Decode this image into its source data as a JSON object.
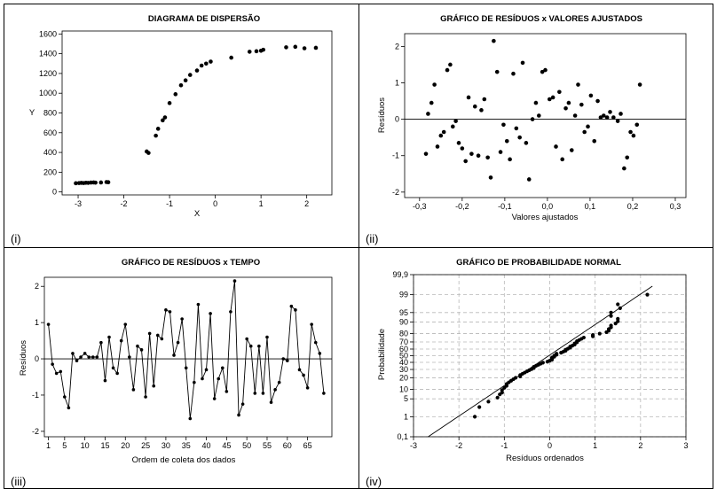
{
  "chart_data": [
    {
      "id": "scatter",
      "type": "scatter",
      "panel_label": "(i)",
      "title": "DIAGRAMA DE DISPERSÃO",
      "xlabel": "X",
      "ylabel": "Y",
      "xlim": [
        -3.35,
        2.55
      ],
      "ylim": [
        -30,
        1630
      ],
      "xticks": [
        -3,
        -2,
        -1,
        0,
        1,
        2
      ],
      "yticks": [
        0,
        200,
        400,
        600,
        800,
        1000,
        1200,
        1400,
        1600
      ],
      "points": [
        [
          -3.05,
          88
        ],
        [
          -2.98,
          90
        ],
        [
          -2.93,
          92
        ],
        [
          -2.88,
          90
        ],
        [
          -2.83,
          93
        ],
        [
          -2.78,
          92
        ],
        [
          -2.72,
          95
        ],
        [
          -2.66,
          96
        ],
        [
          -2.62,
          94
        ],
        [
          -2.5,
          96
        ],
        [
          -2.38,
          100
        ],
        [
          -2.34,
          98
        ],
        [
          -1.5,
          410
        ],
        [
          -1.46,
          395
        ],
        [
          -1.3,
          570
        ],
        [
          -1.25,
          640
        ],
        [
          -1.15,
          725
        ],
        [
          -1.1,
          755
        ],
        [
          -1.0,
          900
        ],
        [
          -0.87,
          990
        ],
        [
          -0.75,
          1080
        ],
        [
          -0.65,
          1130
        ],
        [
          -0.55,
          1185
        ],
        [
          -0.4,
          1230
        ],
        [
          -0.3,
          1280
        ],
        [
          -0.2,
          1300
        ],
        [
          -0.1,
          1320
        ],
        [
          0.35,
          1360
        ],
        [
          0.75,
          1420
        ],
        [
          0.9,
          1425
        ],
        [
          1.0,
          1430
        ],
        [
          1.05,
          1440
        ],
        [
          1.55,
          1465
        ],
        [
          1.75,
          1470
        ],
        [
          1.95,
          1455
        ],
        [
          2.2,
          1460
        ]
      ]
    },
    {
      "id": "residuals_vs_fitted",
      "type": "scatter",
      "panel_label": "(ii)",
      "title": "GRÁFICO DE RESÍDUOS x VALORES AJUSTADOS",
      "xlabel": "Valores ajustados",
      "ylabel": "Resíduos",
      "xlim": [
        -0.335,
        0.325
      ],
      "ylim": [
        -2.15,
        2.35
      ],
      "xticks": [
        -0.3,
        -0.2,
        -0.1,
        0.0,
        0.1,
        0.2,
        0.3
      ],
      "xtick_labels": [
        "-0,3",
        "-0,2",
        "-0,1",
        "0,0",
        "0,1",
        "0,2",
        "0,3"
      ],
      "yticks": [
        -2,
        -1,
        0,
        1,
        2
      ],
      "reference_line": 0,
      "points": [
        [
          -0.285,
          -0.95
        ],
        [
          -0.28,
          0.15
        ],
        [
          -0.272,
          0.45
        ],
        [
          -0.265,
          0.95
        ],
        [
          -0.258,
          -0.75
        ],
        [
          -0.25,
          -0.45
        ],
        [
          -0.243,
          -0.35
        ],
        [
          -0.235,
          1.35
        ],
        [
          -0.228,
          1.5
        ],
        [
          -0.222,
          -0.2
        ],
        [
          -0.215,
          -0.05
        ],
        [
          -0.208,
          -0.65
        ],
        [
          -0.2,
          -0.8
        ],
        [
          -0.192,
          -1.15
        ],
        [
          -0.185,
          0.6
        ],
        [
          -0.178,
          -0.95
        ],
        [
          -0.17,
          0.35
        ],
        [
          -0.162,
          -1.0
        ],
        [
          -0.155,
          0.25
        ],
        [
          -0.148,
          0.55
        ],
        [
          -0.14,
          -1.05
        ],
        [
          -0.133,
          -1.6
        ],
        [
          -0.126,
          2.15
        ],
        [
          -0.118,
          1.3
        ],
        [
          -0.11,
          -0.9
        ],
        [
          -0.103,
          -0.15
        ],
        [
          -0.095,
          -0.6
        ],
        [
          -0.088,
          -1.1
        ],
        [
          -0.08,
          1.25
        ],
        [
          -0.073,
          -0.25
        ],
        [
          -0.065,
          -0.5
        ],
        [
          -0.058,
          1.55
        ],
        [
          -0.05,
          -0.65
        ],
        [
          -0.043,
          -1.65
        ],
        [
          -0.035,
          0.0
        ],
        [
          -0.027,
          0.45
        ],
        [
          -0.02,
          0.1
        ],
        [
          -0.012,
          1.3
        ],
        [
          -0.005,
          1.35
        ],
        [
          0.005,
          0.55
        ],
        [
          0.013,
          0.6
        ],
        [
          0.02,
          -0.75
        ],
        [
          0.028,
          0.75
        ],
        [
          0.035,
          -1.1
        ],
        [
          0.043,
          0.3
        ],
        [
          0.05,
          0.45
        ],
        [
          0.057,
          -0.85
        ],
        [
          0.065,
          0.1
        ],
        [
          0.072,
          0.95
        ],
        [
          0.08,
          0.4
        ],
        [
          0.087,
          -0.35
        ],
        [
          0.095,
          -0.2
        ],
        [
          0.102,
          0.65
        ],
        [
          0.11,
          -0.6
        ],
        [
          0.118,
          0.5
        ],
        [
          0.125,
          0.05
        ],
        [
          0.132,
          0.1
        ],
        [
          0.14,
          0.05
        ],
        [
          0.147,
          0.2
        ],
        [
          0.155,
          0.05
        ],
        [
          0.165,
          -0.05
        ],
        [
          0.172,
          0.15
        ],
        [
          0.18,
          -1.35
        ],
        [
          0.187,
          -1.05
        ],
        [
          0.195,
          -0.35
        ],
        [
          0.202,
          -0.45
        ],
        [
          0.21,
          -0.15
        ],
        [
          0.217,
          0.95
        ]
      ]
    },
    {
      "id": "residuals_vs_order",
      "type": "line",
      "panel_label": "(iii)",
      "title": "GRÁFICO DE RESÍDUOS x TEMPO",
      "xlabel": "Ordem de coleta dos dados",
      "ylabel": "Resíduos",
      "xlim": [
        0,
        71
      ],
      "ylim": [
        -2.15,
        2.25
      ],
      "xticks": [
        1,
        5,
        10,
        15,
        20,
        25,
        30,
        35,
        40,
        45,
        50,
        55,
        60,
        65
      ],
      "yticks": [
        -2,
        -1,
        0,
        1,
        2
      ],
      "reference_line": 0,
      "y": [
        0.95,
        -0.15,
        -0.4,
        -0.35,
        -1.05,
        -1.35,
        0.15,
        -0.05,
        0.05,
        0.15,
        0.05,
        0.05,
        0.05,
        0.45,
        -0.6,
        0.6,
        -0.25,
        -0.4,
        0.5,
        0.95,
        0.05,
        -0.85,
        0.35,
        0.25,
        -1.05,
        0.7,
        -0.75,
        0.65,
        0.55,
        1.35,
        1.3,
        0.1,
        0.45,
        1.1,
        -0.25,
        -1.65,
        -0.65,
        1.5,
        -0.55,
        -0.3,
        1.25,
        -1.1,
        -0.55,
        -0.25,
        -0.9,
        1.3,
        2.15,
        -1.55,
        -1.25,
        0.55,
        0.35,
        -0.95,
        0.35,
        -0.95,
        0.6,
        -1.2,
        -0.85,
        -0.65,
        0.0,
        -0.05,
        1.45,
        1.35,
        -0.3,
        -0.45,
        -0.8,
        0.95,
        0.45,
        0.15,
        -0.95
      ]
    },
    {
      "id": "normal_probability",
      "type": "scatter",
      "panel_label": "(iv)",
      "title": "GRÁFICO DE PROBABILIDADE NORMAL",
      "xlabel": "Resíduos ordenados",
      "ylabel": "Probabilidade",
      "xlim": [
        -3,
        3
      ],
      "xticks": [
        -3,
        -2,
        -1,
        0,
        1,
        2,
        3
      ],
      "yticks": [
        0.1,
        1,
        5,
        10,
        20,
        30,
        40,
        50,
        60,
        70,
        80,
        90,
        95,
        99,
        99.9
      ],
      "ytick_labels": [
        "0,1",
        "1",
        "5",
        "10",
        "20",
        "30",
        "40",
        "50",
        "60",
        "70",
        "80",
        "90",
        "95",
        "99",
        "99,9"
      ],
      "fit_line": {
        "mean": -0.02,
        "sd": 0.86
      },
      "points": [
        [
          -1.65,
          1.0
        ],
        [
          -1.55,
          2.5
        ],
        [
          -1.35,
          4.0
        ],
        [
          -1.15,
          5.5
        ],
        [
          -1.1,
          7.0
        ],
        [
          -1.05,
          8.0
        ],
        [
          -1.05,
          9.5
        ],
        [
          -1.0,
          11.0
        ],
        [
          -0.95,
          12.5
        ],
        [
          -0.95,
          14.0
        ],
        [
          -0.9,
          15.5
        ],
        [
          -0.85,
          17.0
        ],
        [
          -0.8,
          18.5
        ],
        [
          -0.75,
          20.0
        ],
        [
          -0.65,
          21.5
        ],
        [
          -0.65,
          23.0
        ],
        [
          -0.6,
          24.5
        ],
        [
          -0.55,
          26.0
        ],
        [
          -0.5,
          27.5
        ],
        [
          -0.45,
          29.0
        ],
        [
          -0.4,
          30.5
        ],
        [
          -0.35,
          32.0
        ],
        [
          -0.35,
          33.5
        ],
        [
          -0.3,
          35.0
        ],
        [
          -0.25,
          36.5
        ],
        [
          -0.2,
          38.0
        ],
        [
          -0.15,
          39.5
        ],
        [
          -0.05,
          41.0
        ],
        [
          0.0,
          42.5
        ],
        [
          0.05,
          44.0
        ],
        [
          0.05,
          45.5
        ],
        [
          0.05,
          47.0
        ],
        [
          0.1,
          48.5
        ],
        [
          0.1,
          50.0
        ],
        [
          0.15,
          51.5
        ],
        [
          0.15,
          53.0
        ],
        [
          0.25,
          54.5
        ],
        [
          0.3,
          56.0
        ],
        [
          0.35,
          57.5
        ],
        [
          0.35,
          59.0
        ],
        [
          0.4,
          60.5
        ],
        [
          0.45,
          62.0
        ],
        [
          0.45,
          63.5
        ],
        [
          0.5,
          65.0
        ],
        [
          0.55,
          66.5
        ],
        [
          0.55,
          68.0
        ],
        [
          0.6,
          69.5
        ],
        [
          0.6,
          71.0
        ],
        [
          0.65,
          72.5
        ],
        [
          0.7,
          74.0
        ],
        [
          0.75,
          75.5
        ],
        [
          0.95,
          77.0
        ],
        [
          0.95,
          78.5
        ],
        [
          1.1,
          80.0
        ],
        [
          1.25,
          81.5
        ],
        [
          1.3,
          83.0
        ],
        [
          1.3,
          84.5
        ],
        [
          1.35,
          86.0
        ],
        [
          1.35,
          87.5
        ],
        [
          1.45,
          89.0
        ],
        [
          1.5,
          90.5
        ],
        [
          1.5,
          92.0
        ],
        [
          1.35,
          93.5
        ],
        [
          1.35,
          95.0
        ],
        [
          1.55,
          96.5
        ],
        [
          1.5,
          97.5
        ],
        [
          2.15,
          99.0
        ]
      ]
    }
  ]
}
